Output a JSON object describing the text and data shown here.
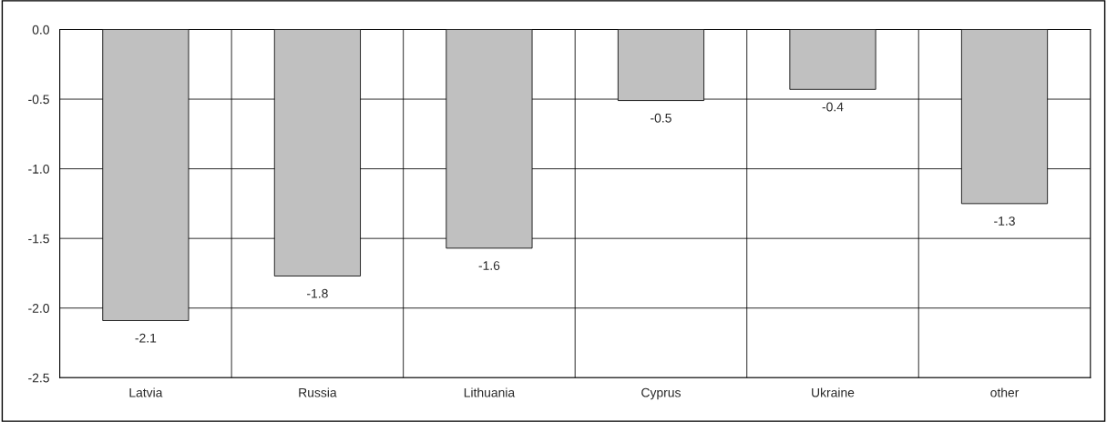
{
  "chart_data": {
    "type": "bar",
    "categories": [
      "Latvia",
      "Russia",
      "Lithuania",
      "Cyprus",
      "Ukraine",
      "other"
    ],
    "values": [
      -2.09,
      -1.77,
      -1.57,
      -0.51,
      -0.43,
      -1.25
    ],
    "value_labels": [
      "-2.1",
      "-1.8",
      "-1.6",
      "-0.5",
      "-0.4",
      "-1.3"
    ],
    "color": "#c0c0c0",
    "ylim": [
      -2.5,
      0
    ],
    "yticks": [
      {
        "value": 0,
        "label": "0.0"
      },
      {
        "value": -0.5,
        "label": "-0.5"
      },
      {
        "value": -1.0,
        "label": "-1.0"
      },
      {
        "value": -1.5,
        "label": "-1.5"
      },
      {
        "value": -2.0,
        "label": "-2.0"
      },
      {
        "value": -2.5,
        "label": "-2.5"
      }
    ],
    "grid": true,
    "legend": false
  }
}
